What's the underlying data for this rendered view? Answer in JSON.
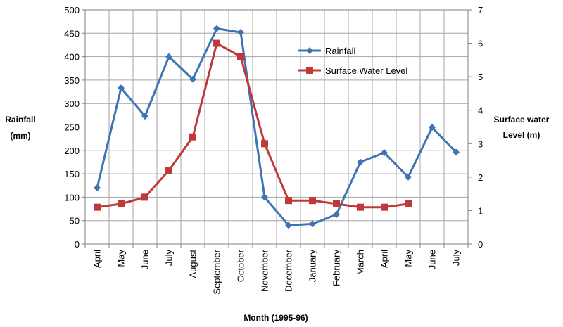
{
  "chart_data": {
    "type": "line",
    "title": "",
    "xlabel": "Month (1995-96)",
    "ylabel": [
      "Rainfall",
      "(mm)"
    ],
    "ylabel2": [
      "Surface water",
      "Level (m)"
    ],
    "categories": [
      "April",
      "May",
      "June",
      "July",
      "August",
      "September",
      "October",
      "November",
      "December",
      "January",
      "February",
      "March",
      "April",
      "May",
      "June",
      "July"
    ],
    "ylim": [
      0,
      500
    ],
    "yticks": [
      0,
      50,
      100,
      150,
      200,
      250,
      300,
      350,
      400,
      450,
      500
    ],
    "y2lim": [
      0,
      7
    ],
    "y2ticks": [
      0,
      1,
      2,
      3,
      4,
      5,
      6,
      7
    ],
    "grid": true,
    "legend_position": "top-right",
    "series": [
      {
        "name": "Rainfall",
        "axis": "left",
        "color": "#3f74b4",
        "marker": "diamond",
        "values": [
          120,
          333,
          273,
          400,
          352,
          460,
          452,
          100,
          40,
          43,
          63,
          175,
          195,
          143,
          249,
          196
        ]
      },
      {
        "name": "Surface Water Level",
        "axis": "right",
        "color": "#c0393a",
        "marker": "square",
        "values": [
          1.1,
          1.2,
          1.4,
          2.2,
          3.2,
          6.0,
          5.6,
          3.0,
          1.3,
          1.3,
          1.2,
          1.1,
          1.1,
          1.2,
          null,
          null
        ]
      }
    ]
  }
}
